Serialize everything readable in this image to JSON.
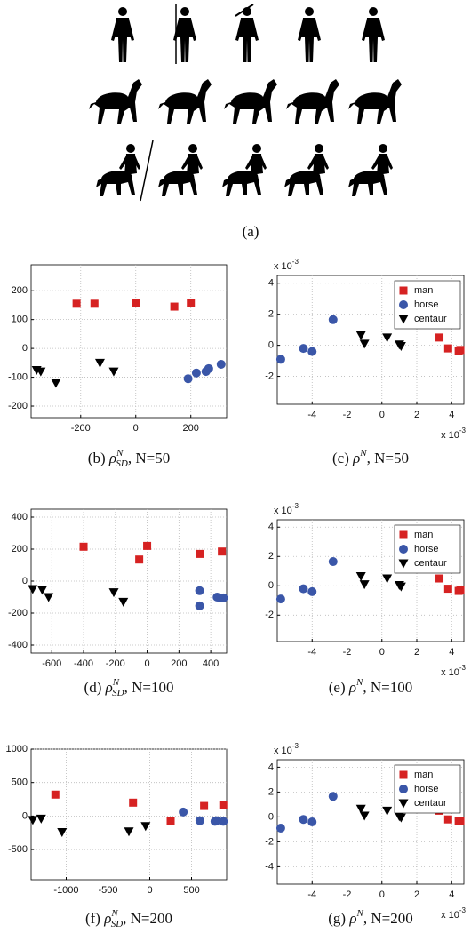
{
  "figure_a": {
    "caption": "(a)"
  },
  "chart_data": [
    {
      "type": "scatter",
      "caption": {
        "label": "(b)",
        "symbol": "ρ",
        "sup": "N",
        "sub": "SD",
        "text": ", N=50"
      },
      "xlim": [
        -380,
        330
      ],
      "xticks": [
        -200,
        0,
        200
      ],
      "ylim": [
        -240,
        290
      ],
      "yticks": [
        -200,
        -100,
        0,
        100,
        200
      ],
      "grid": true,
      "legend": null,
      "series": [
        {
          "name": "man",
          "color": "#d62222",
          "marker": "square",
          "x": [
            -215,
            -150,
            0,
            140,
            200
          ],
          "values": [
            155,
            155,
            157,
            145,
            158
          ]
        },
        {
          "name": "horse",
          "color": "#3a56a8",
          "marker": "circle",
          "x": [
            190,
            220,
            255,
            265,
            310
          ],
          "values": [
            -105,
            -85,
            -80,
            -70,
            -55
          ]
        },
        {
          "name": "centaur",
          "color": "#000000",
          "marker": "triangle",
          "x": [
            -360,
            -345,
            -290,
            -130,
            -80
          ],
          "values": [
            -75,
            -80,
            -120,
            -50,
            -80
          ]
        }
      ]
    },
    {
      "type": "scatter",
      "caption": {
        "label": "(c)",
        "symbol": "ρ",
        "sup": "N",
        "sub": null,
        "text": ", N=50"
      },
      "xlim": [
        -6,
        4.7
      ],
      "xticks": [
        -4,
        -2,
        0,
        2,
        4
      ],
      "ylim": [
        -3.8,
        4.5
      ],
      "yticks": [
        -2,
        0,
        2,
        4
      ],
      "grid": true,
      "legend": "upper right",
      "x_scale_label": {
        "base": "x 10",
        "exp": "-3"
      },
      "y_scale_label": {
        "base": "x 10",
        "exp": "-3"
      },
      "series": [
        {
          "name": "man",
          "color": "#d62222",
          "marker": "square",
          "x": [
            3.3,
            3.8,
            4.4,
            4.5
          ],
          "values": [
            0.5,
            -0.2,
            -0.35,
            -0.3
          ]
        },
        {
          "name": "horse",
          "color": "#3a56a8",
          "marker": "circle",
          "x": [
            -5.8,
            -4.5,
            -4.0,
            -2.8
          ],
          "values": [
            -0.9,
            -0.2,
            -0.4,
            1.65
          ]
        },
        {
          "name": "centaur",
          "color": "#000000",
          "marker": "triangle",
          "x": [
            -1.2,
            -1.0,
            0.3,
            1.0,
            1.1
          ],
          "values": [
            0.65,
            0.1,
            0.5,
            0.05,
            -0.05
          ]
        }
      ]
    },
    {
      "type": "scatter",
      "caption": {
        "label": "(d)",
        "symbol": "ρ",
        "sup": "N",
        "sub": "SD",
        "text": ", N=100"
      },
      "xlim": [
        -730,
        500
      ],
      "xticks": [
        -600,
        -400,
        -200,
        0,
        200,
        400
      ],
      "ylim": [
        -450,
        450
      ],
      "yticks": [
        -400,
        -200,
        0,
        200,
        400
      ],
      "grid": true,
      "legend": null,
      "series": [
        {
          "name": "man",
          "color": "#d62222",
          "marker": "square",
          "x": [
            -400,
            -50,
            0,
            330,
            470
          ],
          "values": [
            215,
            135,
            220,
            170,
            185
          ]
        },
        {
          "name": "horse",
          "color": "#3a56a8",
          "marker": "circle",
          "x": [
            330,
            330,
            440,
            460,
            480
          ],
          "values": [
            -60,
            -155,
            -100,
            -105,
            -105
          ]
        },
        {
          "name": "centaur",
          "color": "#000000",
          "marker": "triangle",
          "x": [
            -720,
            -660,
            -620,
            -210,
            -150
          ],
          "values": [
            -50,
            -55,
            -100,
            -70,
            -130
          ]
        }
      ]
    },
    {
      "type": "scatter",
      "caption": {
        "label": "(e)",
        "symbol": "ρ",
        "sup": "N",
        "sub": null,
        "text": ", N=100"
      },
      "xlim": [
        -6,
        4.7
      ],
      "xticks": [
        -4,
        -2,
        0,
        2,
        4
      ],
      "ylim": [
        -3.8,
        4.5
      ],
      "yticks": [
        -2,
        0,
        2,
        4
      ],
      "grid": true,
      "legend": "upper right",
      "x_scale_label": {
        "base": "x 10",
        "exp": "-3"
      },
      "y_scale_label": {
        "base": "x 10",
        "exp": "-3"
      },
      "series": [
        {
          "name": "man",
          "color": "#d62222",
          "marker": "square",
          "x": [
            3.3,
            3.8,
            4.4,
            4.5
          ],
          "values": [
            0.5,
            -0.2,
            -0.35,
            -0.3
          ]
        },
        {
          "name": "horse",
          "color": "#3a56a8",
          "marker": "circle",
          "x": [
            -5.8,
            -4.5,
            -4.0,
            -2.8
          ],
          "values": [
            -0.9,
            -0.2,
            -0.4,
            1.65
          ]
        },
        {
          "name": "centaur",
          "color": "#000000",
          "marker": "triangle",
          "x": [
            -1.2,
            -1.0,
            0.3,
            1.0,
            1.1
          ],
          "values": [
            0.65,
            0.1,
            0.5,
            0.05,
            -0.05
          ]
        }
      ]
    },
    {
      "type": "scatter",
      "caption": {
        "label": "(f)",
        "symbol": "ρ",
        "sup": "N",
        "sub": "SD",
        "text": ", N=200"
      },
      "xlim": [
        -1420,
        920
      ],
      "xticks": [
        -1000,
        -500,
        0,
        500
      ],
      "ylim": [
        -950,
        1000
      ],
      "yticks": [
        -500,
        0,
        500,
        1000
      ],
      "grid": true,
      "legend": null,
      "series": [
        {
          "name": "man",
          "color": "#d62222",
          "marker": "square",
          "x": [
            -1130,
            -200,
            250,
            650,
            880
          ],
          "values": [
            320,
            200,
            -70,
            150,
            170
          ]
        },
        {
          "name": "horse",
          "color": "#3a56a8",
          "marker": "circle",
          "x": [
            400,
            600,
            780,
            800,
            880
          ],
          "values": [
            60,
            -70,
            -80,
            -70,
            -80
          ]
        },
        {
          "name": "centaur",
          "color": "#000000",
          "marker": "triangle",
          "x": [
            -1400,
            -1300,
            -1050,
            -250,
            -50
          ],
          "values": [
            -60,
            -40,
            -240,
            -230,
            -150
          ]
        }
      ]
    },
    {
      "type": "scatter",
      "caption": {
        "label": "(g)",
        "symbol": "ρ",
        "sup": "N",
        "sub": null,
        "text": ", N=200"
      },
      "xlim": [
        -6,
        4.7
      ],
      "xticks": [
        -4,
        -2,
        0,
        2,
        4
      ],
      "ylim": [
        -5.4,
        4.6
      ],
      "yticks": [
        -4,
        -2,
        0,
        2,
        4
      ],
      "grid": true,
      "legend": "upper right",
      "x_scale_label": {
        "base": "x 10",
        "exp": "-3"
      },
      "y_scale_label": {
        "base": "x 10",
        "exp": "-3"
      },
      "series": [
        {
          "name": "man",
          "color": "#d62222",
          "marker": "square",
          "x": [
            3.3,
            3.8,
            4.4,
            4.5
          ],
          "values": [
            0.5,
            -0.2,
            -0.35,
            -0.3
          ]
        },
        {
          "name": "horse",
          "color": "#3a56a8",
          "marker": "circle",
          "x": [
            -5.8,
            -4.5,
            -4.0,
            -2.8
          ],
          "values": [
            -0.9,
            -0.2,
            -0.4,
            1.65
          ]
        },
        {
          "name": "centaur",
          "color": "#000000",
          "marker": "triangle",
          "x": [
            -1.2,
            -1.0,
            0.3,
            1.0,
            1.1
          ],
          "values": [
            0.65,
            0.1,
            0.5,
            0.05,
            -0.05
          ]
        }
      ]
    }
  ]
}
